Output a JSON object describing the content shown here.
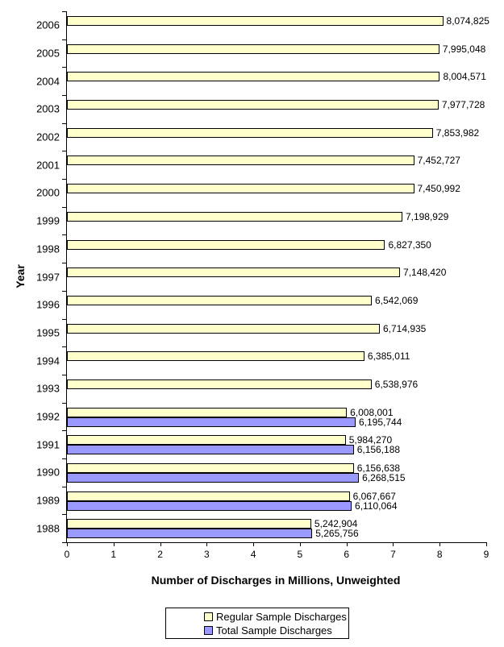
{
  "page": {
    "background_color": "#FFFFFF",
    "axis_color": "#000000",
    "text_color": "#000000"
  },
  "chart_data": {
    "type": "bar",
    "orientation": "horizontal",
    "title": "",
    "xlabel": "Number of Discharges in Millions, Unweighted",
    "ylabel": "Year",
    "xlim": [
      0,
      9
    ],
    "x_ticks": [
      0,
      1,
      2,
      3,
      4,
      5,
      6,
      7,
      8,
      9
    ],
    "grid": "off",
    "legend_position": "bottom",
    "value_unit_divisor": 1000000,
    "categories": [
      "2006",
      "2005",
      "2004",
      "2003",
      "2002",
      "2001",
      "2000",
      "1999",
      "1998",
      "1997",
      "1996",
      "1995",
      "1994",
      "1993",
      "1992",
      "1991",
      "1990",
      "1989",
      "1988"
    ],
    "series": [
      {
        "name": "Regular Sample Discharges",
        "color": "#FFFFCC",
        "values": [
          8074825,
          7995048,
          8004571,
          7977728,
          7853982,
          7452727,
          7450992,
          7198929,
          6827350,
          7148420,
          6542069,
          6714935,
          6385011,
          6538976,
          6008001,
          5984270,
          6156638,
          6067667,
          5242904
        ],
        "labels": [
          "8,074,825",
          "7,995,048",
          "8,004,571",
          "7,977,728",
          "7,853,982",
          "7,452,727",
          "7,450,992",
          "7,198,929",
          "6,827,350",
          "7,148,420",
          "6,542,069",
          "6,714,935",
          "6,385,011",
          "6,538,976",
          "6,008,001",
          "5,984,270",
          "6,156,638",
          "6,067,667",
          "5,242,904"
        ]
      },
      {
        "name": "Total Sample Discharges",
        "color": "#9999FF",
        "values": [
          null,
          null,
          null,
          null,
          null,
          null,
          null,
          null,
          null,
          null,
          null,
          null,
          null,
          null,
          6195744,
          6156188,
          6268515,
          6110064,
          5265756
        ],
        "labels": [
          null,
          null,
          null,
          null,
          null,
          null,
          null,
          null,
          null,
          null,
          null,
          null,
          null,
          null,
          "6,195,744",
          "6,156,188",
          "6,268,515",
          "6,110,064",
          "5,265,756"
        ]
      }
    ]
  }
}
